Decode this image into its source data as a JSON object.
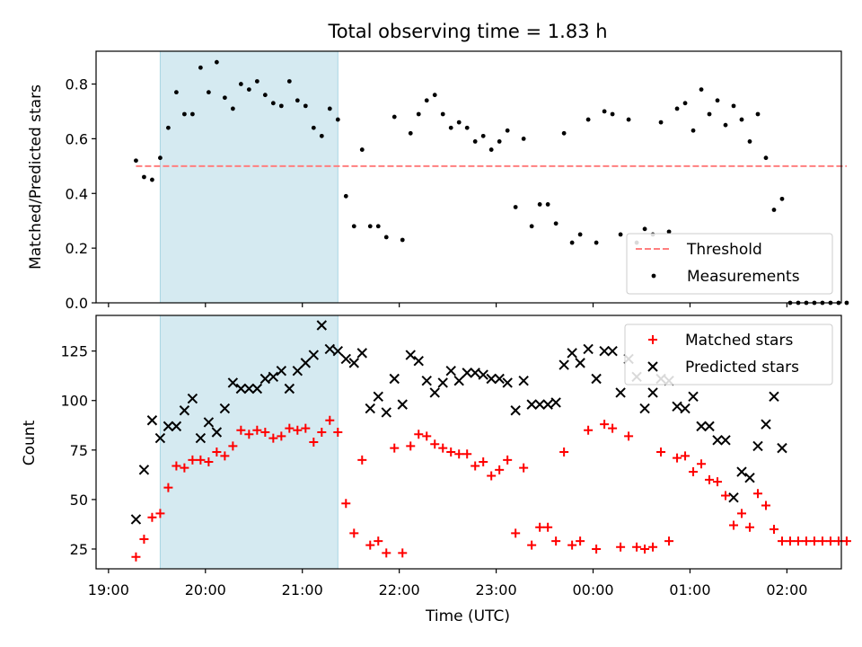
{
  "chart_data": [
    {
      "type": "scatter",
      "title": "Total observing time = 1.83 h",
      "ylabel": "Matched/Predicted stars",
      "xlabel": "",
      "ylim": [
        0,
        0.92
      ],
      "yticks": [
        "0.0",
        "0.2",
        "0.4",
        "0.6",
        "0.8"
      ],
      "shaded_span": {
        "x0": "19:32",
        "x1": "21:22",
        "color": "#d5eaf1"
      },
      "threshold": {
        "name": "Threshold",
        "value": 0.5,
        "x0": "19:17",
        "x1": "02:37",
        "color": "#ff7f7f"
      },
      "legend": {
        "placement": "lower-right",
        "entries": [
          "Threshold",
          "Measurements"
        ]
      },
      "series": [
        {
          "name": "Measurements",
          "marker": "dot",
          "color": "#000000",
          "points": [
            [
              "19:17",
              0.52
            ],
            [
              "19:22",
              0.46
            ],
            [
              "19:27",
              0.45
            ],
            [
              "19:32",
              0.53
            ],
            [
              "19:37",
              0.64
            ],
            [
              "19:42",
              0.77
            ],
            [
              "19:47",
              0.69
            ],
            [
              "19:52",
              0.69
            ],
            [
              "19:57",
              0.86
            ],
            [
              "20:02",
              0.77
            ],
            [
              "20:07",
              0.88
            ],
            [
              "20:12",
              0.75
            ],
            [
              "20:17",
              0.71
            ],
            [
              "20:22",
              0.8
            ],
            [
              "20:27",
              0.78
            ],
            [
              "20:32",
              0.81
            ],
            [
              "20:37",
              0.76
            ],
            [
              "20:42",
              0.73
            ],
            [
              "20:47",
              0.72
            ],
            [
              "20:52",
              0.81
            ],
            [
              "20:57",
              0.74
            ],
            [
              "21:02",
              0.72
            ],
            [
              "21:07",
              0.64
            ],
            [
              "21:12",
              0.61
            ],
            [
              "21:17",
              0.71
            ],
            [
              "21:22",
              0.67
            ],
            [
              "21:27",
              0.39
            ],
            [
              "21:32",
              0.28
            ],
            [
              "21:37",
              0.56
            ],
            [
              "21:42",
              0.28
            ],
            [
              "21:47",
              0.28
            ],
            [
              "21:52",
              0.24
            ],
            [
              "21:57",
              0.68
            ],
            [
              "22:02",
              0.23
            ],
            [
              "22:07",
              0.62
            ],
            [
              "22:12",
              0.69
            ],
            [
              "22:17",
              0.74
            ],
            [
              "22:22",
              0.76
            ],
            [
              "22:27",
              0.69
            ],
            [
              "22:32",
              0.64
            ],
            [
              "22:37",
              0.66
            ],
            [
              "22:42",
              0.64
            ],
            [
              "22:47",
              0.59
            ],
            [
              "22:52",
              0.61
            ],
            [
              "22:57",
              0.56
            ],
            [
              "23:02",
              0.59
            ],
            [
              "23:07",
              0.63
            ],
            [
              "23:12",
              0.35
            ],
            [
              "23:17",
              0.6
            ],
            [
              "23:22",
              0.28
            ],
            [
              "23:27",
              0.36
            ],
            [
              "23:32",
              0.36
            ],
            [
              "23:37",
              0.29
            ],
            [
              "23:42",
              0.62
            ],
            [
              "23:47",
              0.22
            ],
            [
              "23:52",
              0.25
            ],
            [
              "23:57",
              0.67
            ],
            [
              "00:02",
              0.22
            ],
            [
              "00:07",
              0.7
            ],
            [
              "00:12",
              0.69
            ],
            [
              "00:17",
              0.25
            ],
            [
              "00:22",
              0.67
            ],
            [
              "00:27",
              0.22
            ],
            [
              "00:32",
              0.27
            ],
            [
              "00:37",
              0.25
            ],
            [
              "00:42",
              0.66
            ],
            [
              "00:47",
              0.26
            ],
            [
              "00:52",
              0.71
            ],
            [
              "00:57",
              0.73
            ],
            [
              "01:02",
              0.63
            ],
            [
              "01:07",
              0.78
            ],
            [
              "01:12",
              0.69
            ],
            [
              "01:17",
              0.74
            ],
            [
              "01:22",
              0.65
            ],
            [
              "01:27",
              0.72
            ],
            [
              "01:32",
              0.67
            ],
            [
              "01:37",
              0.59
            ],
            [
              "01:42",
              0.69
            ],
            [
              "01:47",
              0.53
            ],
            [
              "01:52",
              0.34
            ],
            [
              "01:57",
              0.38
            ],
            [
              "02:02",
              0.0
            ],
            [
              "02:07",
              0.0
            ],
            [
              "02:12",
              0.0
            ],
            [
              "02:17",
              0.0
            ],
            [
              "02:22",
              0.0
            ],
            [
              "02:27",
              0.0
            ],
            [
              "02:32",
              0.0
            ],
            [
              "02:37",
              0.0
            ]
          ]
        }
      ]
    },
    {
      "type": "scatter",
      "xlabel": "Time (UTC)",
      "ylabel": "Count",
      "ylim": [
        15,
        143
      ],
      "yticks": [
        "25",
        "50",
        "75",
        "100",
        "125"
      ],
      "xticks": [
        "19:00",
        "20:00",
        "21:00",
        "22:00",
        "23:00",
        "00:00",
        "01:00",
        "02:00"
      ],
      "shaded_span": {
        "x0": "19:32",
        "x1": "21:22",
        "color": "#d5eaf1"
      },
      "legend": {
        "placement": "upper-right",
        "entries": [
          "Matched stars",
          "Predicted stars"
        ]
      },
      "series": [
        {
          "name": "Matched stars",
          "marker": "plus",
          "color": "#ff0000",
          "points": [
            [
              "19:17",
              21
            ],
            [
              "19:22",
              30
            ],
            [
              "19:27",
              41
            ],
            [
              "19:32",
              43
            ],
            [
              "19:37",
              56
            ],
            [
              "19:42",
              67
            ],
            [
              "19:47",
              66
            ],
            [
              "19:52",
              70
            ],
            [
              "19:57",
              70
            ],
            [
              "20:02",
              69
            ],
            [
              "20:07",
              74
            ],
            [
              "20:12",
              72
            ],
            [
              "20:17",
              77
            ],
            [
              "20:22",
              85
            ],
            [
              "20:27",
              83
            ],
            [
              "20:32",
              85
            ],
            [
              "20:37",
              84
            ],
            [
              "20:42",
              81
            ],
            [
              "20:47",
              82
            ],
            [
              "20:52",
              86
            ],
            [
              "20:57",
              85
            ],
            [
              "21:02",
              86
            ],
            [
              "21:07",
              79
            ],
            [
              "21:12",
              84
            ],
            [
              "21:17",
              90
            ],
            [
              "21:22",
              84
            ],
            [
              "21:27",
              48
            ],
            [
              "21:32",
              33
            ],
            [
              "21:37",
              70
            ],
            [
              "21:42",
              27
            ],
            [
              "21:47",
              29
            ],
            [
              "21:52",
              23
            ],
            [
              "21:57",
              76
            ],
            [
              "22:02",
              23
            ],
            [
              "22:07",
              77
            ],
            [
              "22:12",
              83
            ],
            [
              "22:17",
              82
            ],
            [
              "22:22",
              78
            ],
            [
              "22:27",
              76
            ],
            [
              "22:32",
              74
            ],
            [
              "22:37",
              73
            ],
            [
              "22:42",
              73
            ],
            [
              "22:47",
              67
            ],
            [
              "22:52",
              69
            ],
            [
              "22:57",
              62
            ],
            [
              "23:02",
              65
            ],
            [
              "23:07",
              70
            ],
            [
              "23:12",
              33
            ],
            [
              "23:17",
              66
            ],
            [
              "23:22",
              27
            ],
            [
              "23:27",
              36
            ],
            [
              "23:32",
              36
            ],
            [
              "23:37",
              29
            ],
            [
              "23:42",
              74
            ],
            [
              "23:47",
              27
            ],
            [
              "23:52",
              29
            ],
            [
              "23:57",
              85
            ],
            [
              "00:02",
              25
            ],
            [
              "00:07",
              88
            ],
            [
              "00:12",
              86
            ],
            [
              "00:17",
              26
            ],
            [
              "00:22",
              82
            ],
            [
              "00:27",
              26
            ],
            [
              "00:32",
              25
            ],
            [
              "00:37",
              26
            ],
            [
              "00:42",
              74
            ],
            [
              "00:47",
              29
            ],
            [
              "00:52",
              71
            ],
            [
              "00:57",
              72
            ],
            [
              "01:02",
              64
            ],
            [
              "01:07",
              68
            ],
            [
              "01:12",
              60
            ],
            [
              "01:17",
              59
            ],
            [
              "01:22",
              52
            ],
            [
              "01:27",
              37
            ],
            [
              "01:32",
              43
            ],
            [
              "01:37",
              36
            ],
            [
              "01:42",
              53
            ],
            [
              "01:47",
              47
            ],
            [
              "01:52",
              35
            ],
            [
              "01:57",
              29
            ],
            [
              "02:02",
              29
            ],
            [
              "02:07",
              29
            ],
            [
              "02:12",
              29
            ],
            [
              "02:17",
              29
            ],
            [
              "02:22",
              29
            ],
            [
              "02:27",
              29
            ],
            [
              "02:32",
              29
            ],
            [
              "02:37",
              29
            ]
          ]
        },
        {
          "name": "Predicted stars",
          "marker": "x",
          "color": "#000000",
          "points": [
            [
              "19:17",
              40
            ],
            [
              "19:22",
              65
            ],
            [
              "19:27",
              90
            ],
            [
              "19:32",
              81
            ],
            [
              "19:37",
              87
            ],
            [
              "19:42",
              87
            ],
            [
              "19:47",
              95
            ],
            [
              "19:52",
              101
            ],
            [
              "19:57",
              81
            ],
            [
              "20:02",
              89
            ],
            [
              "20:07",
              84
            ],
            [
              "20:12",
              96
            ],
            [
              "20:17",
              109
            ],
            [
              "20:22",
              106
            ],
            [
              "20:27",
              106
            ],
            [
              "20:32",
              106
            ],
            [
              "20:37",
              111
            ],
            [
              "20:42",
              112
            ],
            [
              "20:47",
              115
            ],
            [
              "20:52",
              106
            ],
            [
              "20:57",
              115
            ],
            [
              "21:02",
              119
            ],
            [
              "21:07",
              123
            ],
            [
              "21:12",
              138
            ],
            [
              "21:17",
              126
            ],
            [
              "21:22",
              125
            ],
            [
              "21:27",
              121
            ],
            [
              "21:32",
              119
            ],
            [
              "21:37",
              124
            ],
            [
              "21:42",
              96
            ],
            [
              "21:47",
              102
            ],
            [
              "21:52",
              94
            ],
            [
              "21:57",
              111
            ],
            [
              "22:02",
              98
            ],
            [
              "22:07",
              123
            ],
            [
              "22:12",
              120
            ],
            [
              "22:17",
              110
            ],
            [
              "22:22",
              104
            ],
            [
              "22:27",
              109
            ],
            [
              "22:32",
              115
            ],
            [
              "22:37",
              110
            ],
            [
              "22:42",
              114
            ],
            [
              "22:47",
              114
            ],
            [
              "22:52",
              113
            ],
            [
              "22:57",
              111
            ],
            [
              "23:02",
              111
            ],
            [
              "23:07",
              109
            ],
            [
              "23:12",
              95
            ],
            [
              "23:17",
              110
            ],
            [
              "23:22",
              98
            ],
            [
              "23:27",
              98
            ],
            [
              "23:32",
              98
            ],
            [
              "23:37",
              99
            ],
            [
              "23:42",
              118
            ],
            [
              "23:47",
              124
            ],
            [
              "23:52",
              119
            ],
            [
              "23:57",
              126
            ],
            [
              "00:02",
              111
            ],
            [
              "00:07",
              125
            ],
            [
              "00:12",
              125
            ],
            [
              "00:17",
              104
            ],
            [
              "00:22",
              121
            ],
            [
              "00:27",
              112
            ],
            [
              "00:32",
              96
            ],
            [
              "00:37",
              104
            ],
            [
              "00:42",
              111
            ],
            [
              "00:47",
              110
            ],
            [
              "00:52",
              97
            ],
            [
              "00:57",
              96
            ],
            [
              "01:02",
              102
            ],
            [
              "01:07",
              87
            ],
            [
              "01:12",
              87
            ],
            [
              "01:17",
              80
            ],
            [
              "01:22",
              80
            ],
            [
              "01:27",
              51
            ],
            [
              "01:32",
              64
            ],
            [
              "01:37",
              61
            ],
            [
              "01:42",
              77
            ],
            [
              "01:47",
              88
            ],
            [
              "01:52",
              102
            ],
            [
              "01:57",
              76
            ]
          ]
        }
      ]
    }
  ]
}
